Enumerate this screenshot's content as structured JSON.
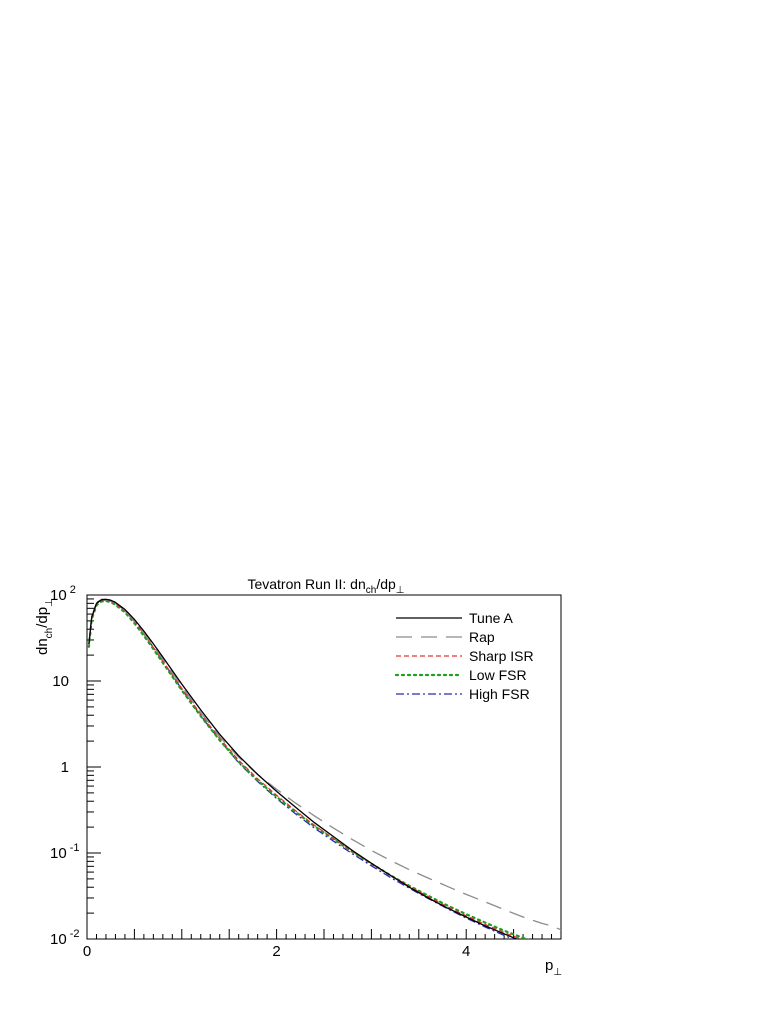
{
  "chart_data": {
    "type": "line",
    "title": "Tevatron Run II: dn",
    "title_sub": "ch",
    "title_tail": "/dp",
    "title_perp": "⊥",
    "ylabel": "dn",
    "ylabel_sub": "ch",
    "ylabel_tail": "/dp",
    "ylabel_perp": "⊥",
    "xlabel": "p",
    "xlabel_perp": "⊥",
    "xlim": [
      0,
      5
    ],
    "ylim": [
      0.01,
      100
    ],
    "y_scale": "log",
    "grid": false,
    "legend_position": "top-right",
    "x_tick_labels": [
      {
        "value": 0,
        "label": "0"
      },
      {
        "value": 2,
        "label": "2"
      },
      {
        "value": 4,
        "label": "4"
      }
    ],
    "y_tick_labels": [
      {
        "value": 100,
        "base": "10",
        "exp": "2"
      },
      {
        "value": 10,
        "base": "10",
        "exp": ""
      },
      {
        "value": 1,
        "base": "1",
        "exp": ""
      },
      {
        "value": 0.1,
        "base": "10",
        "exp": "-1"
      },
      {
        "value": 0.01,
        "base": "10",
        "exp": "-2"
      }
    ],
    "series": [
      {
        "name": "Tune A",
        "color": "#000000",
        "dash": "",
        "width": 1.3,
        "x": [
          0.02,
          0.05,
          0.1,
          0.15,
          0.2,
          0.25,
          0.3,
          0.4,
          0.5,
          0.6,
          0.7,
          0.8,
          1.0,
          1.2,
          1.4,
          1.6,
          1.8,
          2.0,
          2.2,
          2.4,
          2.6,
          2.8,
          3.0,
          3.2,
          3.4,
          3.6,
          3.8,
          4.0,
          4.2,
          4.4,
          4.6,
          4.8
        ],
        "y": [
          27,
          55,
          80,
          88,
          89,
          87,
          82,
          68,
          52,
          38,
          27,
          19,
          9.2,
          4.6,
          2.4,
          1.35,
          0.82,
          0.52,
          0.34,
          0.225,
          0.155,
          0.107,
          0.076,
          0.055,
          0.04,
          0.03,
          0.023,
          0.018,
          0.0142,
          0.0115,
          0.0093,
          0.0078
        ]
      },
      {
        "name": "Rap",
        "color": "#8c8c8c",
        "dash": "16 9",
        "width": 1.3,
        "x": [
          0.02,
          0.05,
          0.1,
          0.15,
          0.2,
          0.25,
          0.3,
          0.4,
          0.5,
          0.6,
          0.7,
          0.8,
          1.0,
          1.2,
          1.4,
          1.6,
          1.8,
          2.0,
          2.2,
          2.4,
          2.6,
          2.8,
          3.0,
          3.2,
          3.4,
          3.6,
          3.8,
          4.0,
          4.2,
          4.4,
          4.6,
          4.8,
          4.9,
          5.0
        ],
        "y": [
          26,
          54,
          79,
          87,
          88,
          86,
          80,
          66,
          50,
          36,
          25.5,
          18,
          8.6,
          4.3,
          2.25,
          1.3,
          0.82,
          0.55,
          0.38,
          0.27,
          0.195,
          0.143,
          0.107,
          0.082,
          0.064,
          0.051,
          0.041,
          0.033,
          0.027,
          0.022,
          0.018,
          0.0152,
          0.0142,
          0.0128
        ]
      },
      {
        "name": "Sharp ISR",
        "color": "#e8312f",
        "dash": "5 3",
        "width": 1.2,
        "x": [
          0.02,
          0.05,
          0.1,
          0.15,
          0.2,
          0.25,
          0.3,
          0.4,
          0.5,
          0.6,
          0.7,
          0.8,
          1.0,
          1.2,
          1.4,
          1.6,
          1.8,
          2.0,
          2.2,
          2.4,
          2.6,
          2.8,
          3.0,
          3.2,
          3.4,
          3.6,
          3.8,
          4.0,
          4.2,
          4.4,
          4.6,
          4.8,
          4.9
        ],
        "y": [
          26,
          54,
          79,
          87,
          87,
          85,
          79,
          65,
          49,
          35,
          24.5,
          17,
          8.2,
          4.1,
          2.15,
          1.2,
          0.73,
          0.47,
          0.31,
          0.21,
          0.147,
          0.104,
          0.075,
          0.055,
          0.041,
          0.031,
          0.0238,
          0.0186,
          0.0148,
          0.0119,
          0.0098,
          0.0082,
          0.0076
        ]
      },
      {
        "name": "Low FSR",
        "color": "#1f9e1f",
        "dash": "2 4",
        "width": 2.2,
        "x": [
          0.02,
          0.05,
          0.1,
          0.15,
          0.2,
          0.25,
          0.3,
          0.4,
          0.5,
          0.6,
          0.7,
          0.8,
          1.0,
          1.2,
          1.4,
          1.6,
          1.8,
          2.0,
          2.2,
          2.4,
          2.6,
          2.8,
          3.0,
          3.2,
          3.4,
          3.6,
          3.8,
          4.0,
          4.2,
          4.4,
          4.6,
          4.8,
          4.9
        ],
        "y": [
          25,
          52,
          76,
          84,
          85,
          83,
          77,
          63,
          47,
          33.5,
          23.5,
          16.3,
          7.8,
          3.9,
          2.05,
          1.15,
          0.7,
          0.45,
          0.3,
          0.205,
          0.145,
          0.103,
          0.075,
          0.055,
          0.0415,
          0.0318,
          0.0246,
          0.0194,
          0.0155,
          0.0125,
          0.0103,
          0.0086,
          0.0079
        ]
      },
      {
        "name": "High FSR",
        "color": "#2a2ab8",
        "dash": "8 3 2 3",
        "width": 1.3,
        "x": [
          0.02,
          0.05,
          0.1,
          0.15,
          0.2,
          0.25,
          0.3,
          0.4,
          0.5,
          0.6,
          0.7,
          0.8,
          1.0,
          1.2,
          1.4,
          1.6,
          1.8,
          2.0,
          2.2,
          2.4,
          2.6,
          2.8,
          3.0,
          3.2,
          3.4,
          3.6,
          3.8,
          4.0,
          4.2,
          4.4,
          4.6,
          4.8,
          4.9
        ],
        "y": [
          27,
          56,
          81,
          89,
          89,
          87,
          81,
          66,
          50,
          35.5,
          24.5,
          17,
          8.0,
          3.95,
          2.05,
          1.12,
          0.68,
          0.43,
          0.285,
          0.195,
          0.137,
          0.098,
          0.071,
          0.052,
          0.039,
          0.0295,
          0.0226,
          0.0175,
          0.0138,
          0.011,
          0.0089,
          0.0074,
          0.0068
        ]
      }
    ]
  }
}
